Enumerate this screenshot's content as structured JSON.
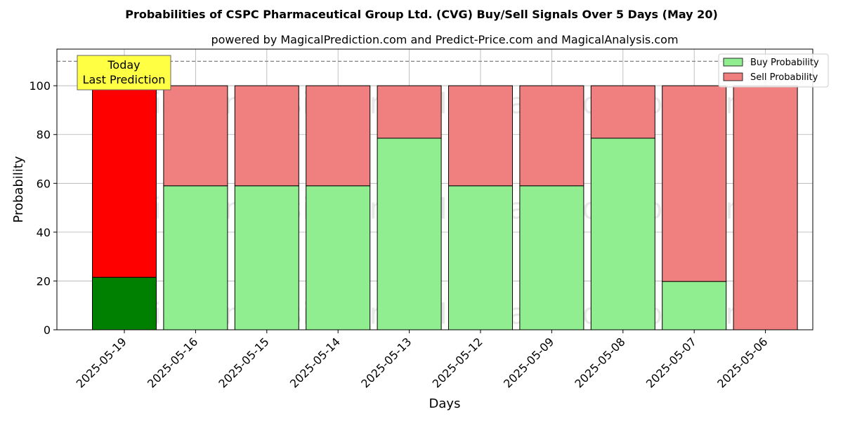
{
  "chart_data": {
    "type": "bar",
    "stacked": true,
    "title": "Probabilities of CSPC Pharmaceutical Group Ltd. (CVG) Buy/Sell Signals Over 5 Days (May 20)",
    "subtitle": "powered by MagicalPrediction.com and Predict-Price.com and MagicalAnalysis.com",
    "xlabel": "Days",
    "ylabel": "Probability",
    "ylim": [
      0,
      115
    ],
    "yticks": [
      0,
      20,
      40,
      60,
      80,
      100
    ],
    "grid": true,
    "legend_position": "top-right",
    "categories": [
      "2025-05-19",
      "2025-05-16",
      "2025-05-15",
      "2025-05-14",
      "2025-05-13",
      "2025-05-12",
      "2025-05-09",
      "2025-05-08",
      "2025-05-07",
      "2025-05-06"
    ],
    "series": [
      {
        "name": "Buy Probability",
        "color": "#90ee90",
        "highlight_color": "#008000",
        "values": [
          21.5,
          59,
          59,
          59,
          78.5,
          59,
          59,
          78.5,
          19.8,
          0
        ]
      },
      {
        "name": "Sell Probability",
        "color": "#f08080",
        "highlight_color": "#ff0000",
        "values": [
          78.5,
          41,
          41,
          41,
          21.5,
          41,
          41,
          21.5,
          80.2,
          100
        ]
      }
    ],
    "reference_line": {
      "y": 110,
      "style": "dashed",
      "color": "#808080"
    },
    "annotation": {
      "lines": [
        "Today",
        "Last Prediction"
      ],
      "background": "#ffff44"
    },
    "watermarks": [
      "MagicalAnalysis.com",
      "MagicalPrediction.com"
    ]
  }
}
